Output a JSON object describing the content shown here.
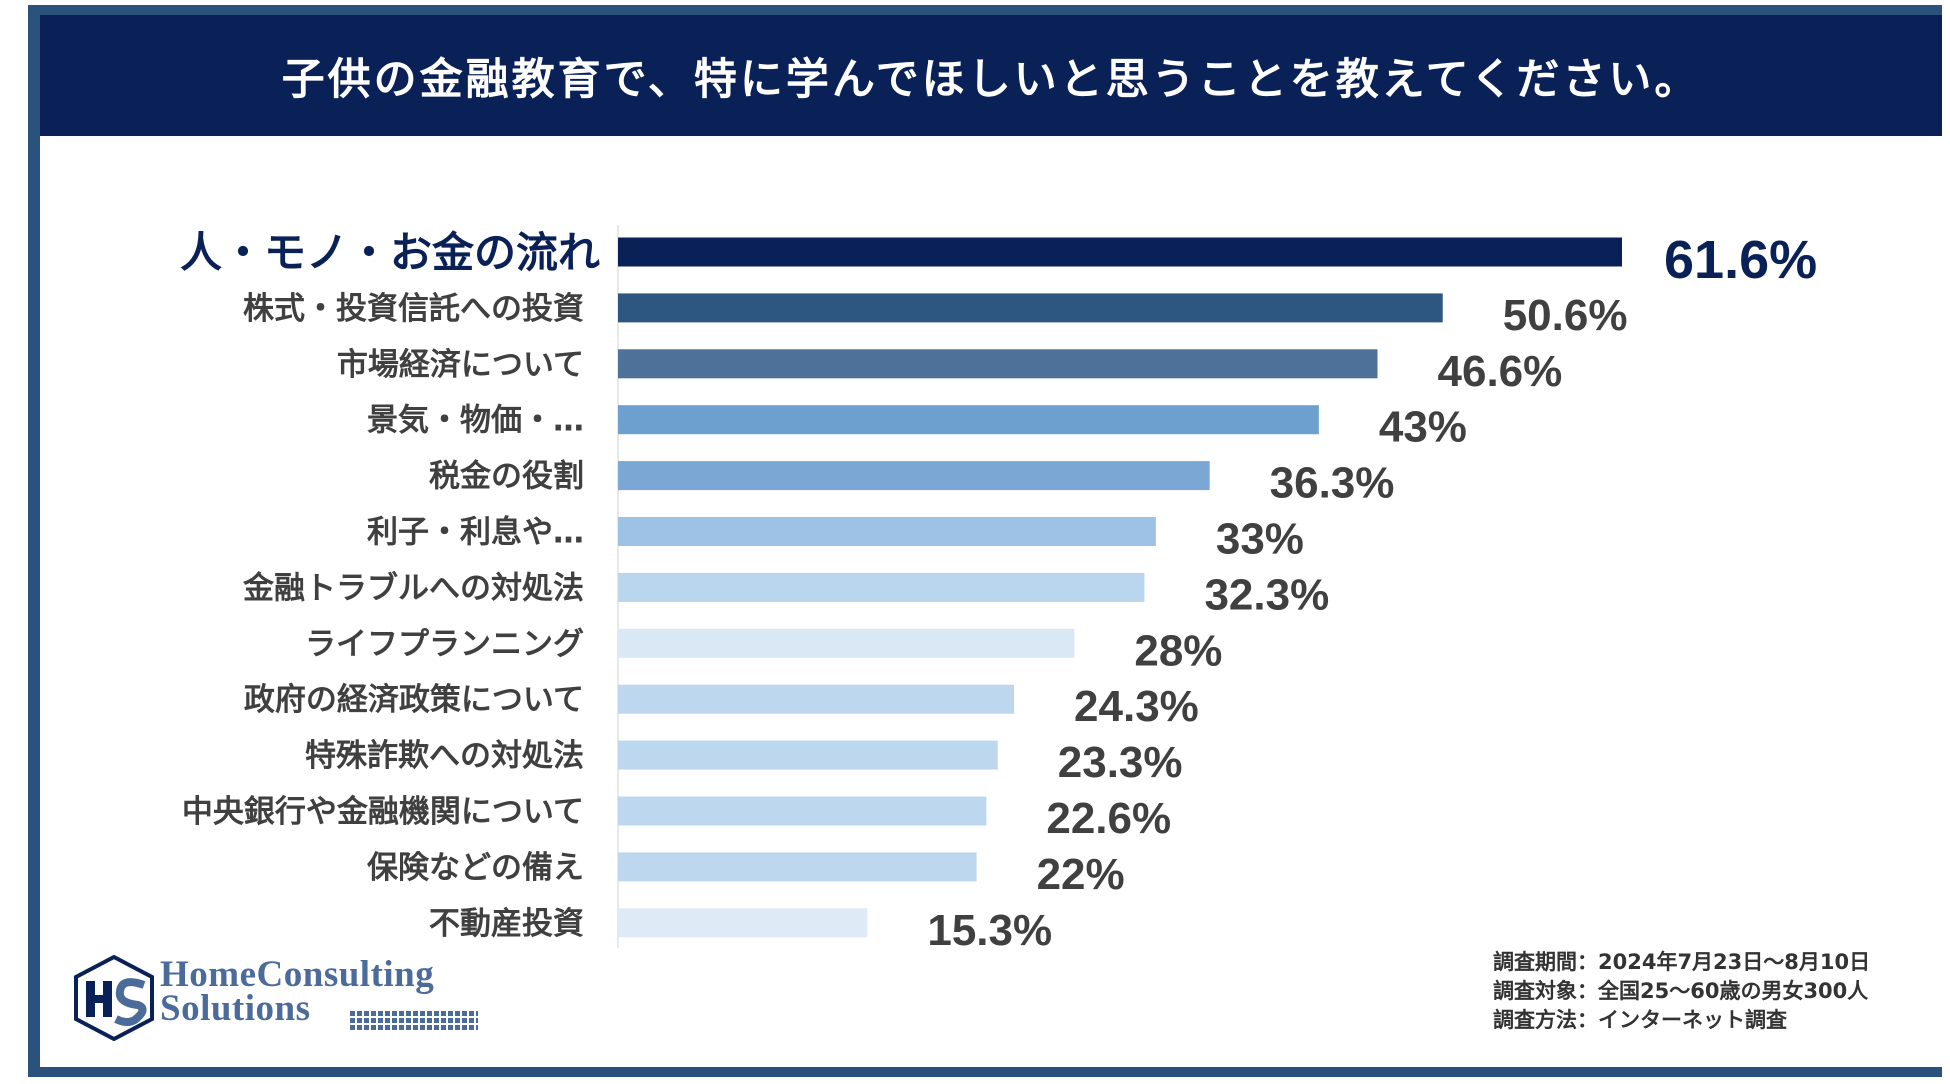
{
  "header": {
    "title": "子供の金融教育で、特に学んでほしいと思うことを教えてください。"
  },
  "colors": {
    "frame": "#2b527c",
    "header_bg": "#0a2158",
    "highlight": "#0a2158",
    "label_text": "#404040",
    "value_text": "#404040"
  },
  "chart_data": {
    "type": "bar",
    "orientation": "horizontal",
    "title": "子供の金融教育で、特に学んでほしいと思うことを教えてください。",
    "xlim": [
      0,
      61.6
    ],
    "categories": [
      "人・モノ・お金の流れ",
      "株式・投資信託への投資",
      "市場経済について",
      "景気・物価・…",
      "税金の役割",
      "利子・利息や…",
      "金融トラブルへの対処法",
      "ライフプランニング",
      "政府の経済政策について",
      "特殊詐欺への対処法",
      "中央銀行や金融機関について",
      "保険などの備え",
      "不動産投資"
    ],
    "values": [
      61.6,
      50.6,
      46.6,
      43,
      36.3,
      33,
      32.3,
      28,
      24.3,
      23.3,
      22.6,
      22,
      15.3
    ],
    "value_labels": [
      "61.6%",
      "50.6%",
      "46.6%",
      "43%",
      "36.3%",
      "33%",
      "32.3%",
      "28%",
      "24.3%",
      "23.3%",
      "22.6%",
      "22%",
      "15.3%"
    ],
    "bar_colors": [
      "#0a2158",
      "#2d5780",
      "#4d7199",
      "#6d9fcf",
      "#7aa7d4",
      "#9dc2e6",
      "#bad5ee",
      "#dae8f6",
      "#bdd7ee",
      "#bdd7ee",
      "#bdd7ee",
      "#bdd7ee",
      "#deebf7"
    ],
    "highlight_index": 0
  },
  "logo": {
    "line1": "HomeConsulting",
    "line2": "Solutions"
  },
  "notes": [
    "調査期間：2024年7月23日～8月10日",
    "調査対象：全国25～60歳の男女300人",
    "調査方法：インターネット調査"
  ]
}
